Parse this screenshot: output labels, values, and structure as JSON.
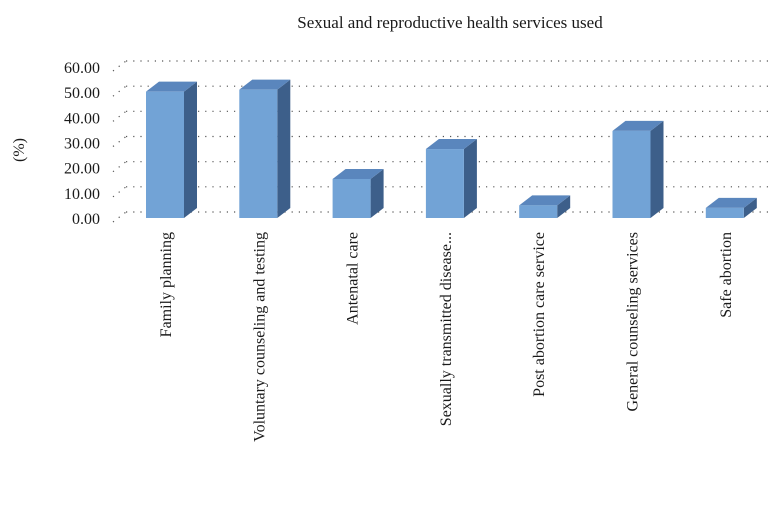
{
  "chart_data": {
    "type": "bar",
    "title": "Sexual and reproductive health services used",
    "ylabel": "(%)",
    "xlabel": "",
    "ylim": [
      0,
      60
    ],
    "yticks": [
      "0.00",
      "10.00",
      "20.00",
      "30.00",
      "40.00",
      "50.00",
      "60.00"
    ],
    "grid": true,
    "style": "3d-column",
    "categories": [
      "Family planning",
      "Voluntary counseling and testing",
      "Antenatal care",
      "Sexually transmitted disease...",
      "Post abortion care service",
      "General counseling services",
      "Safe abortion"
    ],
    "values": [
      50.2,
      51.0,
      15.5,
      27.4,
      5.0,
      34.6,
      4.0
    ],
    "colors": {
      "front": "#72a3d6",
      "side": "#3d5f8a",
      "top": "#5a86bd"
    }
  }
}
